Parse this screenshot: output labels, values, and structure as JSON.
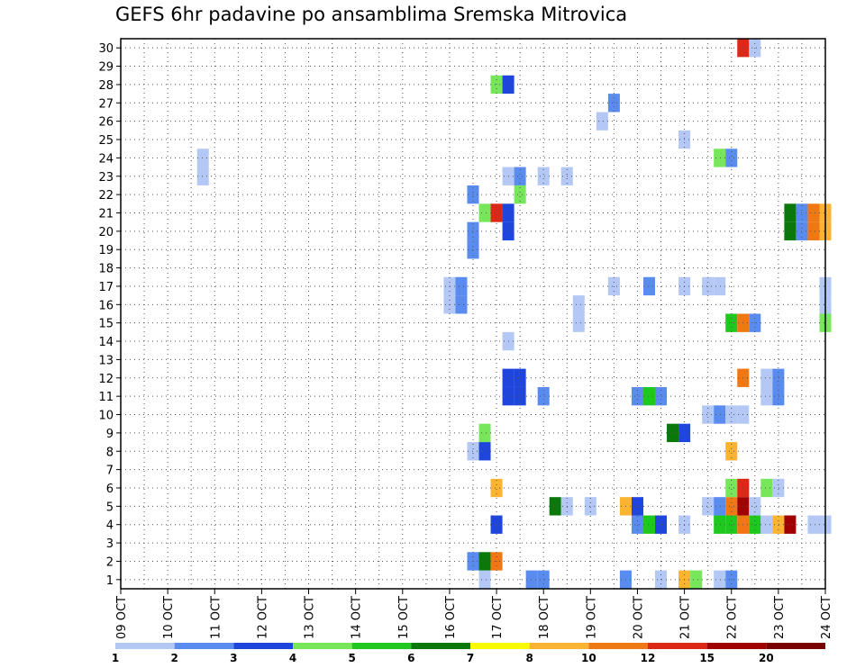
{
  "chart_data": {
    "type": "heatmap",
    "title": "GEFS 6hr padavine po ansamblima Sremska Mitrovica",
    "xlabel": "",
    "ylabel": "",
    "x_tick_labels": [
      "09 OCT",
      "10 OCT",
      "11 OCT",
      "12 OCT",
      "13 OCT",
      "14 OCT",
      "15 OCT",
      "16 OCT",
      "17 OCT",
      "18 OCT",
      "19 OCT",
      "20 OCT",
      "21 OCT",
      "22 OCT",
      "23 OCT",
      "24 OCT"
    ],
    "y_tick_labels": [
      "1",
      "2",
      "3",
      "4",
      "5",
      "6",
      "7",
      "8",
      "9",
      "10",
      "11",
      "12",
      "13",
      "14",
      "15",
      "16",
      "17",
      "18",
      "19",
      "20",
      "21",
      "22",
      "23",
      "24",
      "25",
      "26",
      "27",
      "28",
      "29",
      "30"
    ],
    "ylim": [
      1,
      30
    ],
    "x_start_day": 9,
    "x_end_day": 24,
    "steps_per_day": 4,
    "grid": true,
    "colorbar": {
      "colors": [
        "#b4c8f5",
        "#5a8cf0",
        "#1e46dc",
        "#78e65a",
        "#1ec81e",
        "#0a780a",
        "#fafa00",
        "#fab432",
        "#f07814",
        "#dc2814",
        "#a00000",
        "#780000"
      ],
      "labels": [
        "1",
        "2",
        "3",
        "4",
        "5",
        "6",
        "7",
        "8",
        "10",
        "12",
        "15",
        "20"
      ]
    },
    "points": [
      {
        "x": 16.75,
        "y": 1,
        "v": 1
      },
      {
        "x": 17.75,
        "y": 1,
        "v": 2
      },
      {
        "x": 18.0,
        "y": 1,
        "v": 2
      },
      {
        "x": 19.75,
        "y": 1,
        "v": 2
      },
      {
        "x": 20.5,
        "y": 1,
        "v": 1
      },
      {
        "x": 21.0,
        "y": 1,
        "v": 8
      },
      {
        "x": 21.25,
        "y": 1,
        "v": 4
      },
      {
        "x": 21.75,
        "y": 1,
        "v": 1
      },
      {
        "x": 22.0,
        "y": 1,
        "v": 2
      },
      {
        "x": 16.5,
        "y": 2,
        "v": 2
      },
      {
        "x": 16.75,
        "y": 2,
        "v": 6
      },
      {
        "x": 17.0,
        "y": 2,
        "v": 10
      },
      {
        "x": 17.0,
        "y": 4,
        "v": 3
      },
      {
        "x": 20.0,
        "y": 4,
        "v": 2
      },
      {
        "x": 20.25,
        "y": 4,
        "v": 5
      },
      {
        "x": 20.5,
        "y": 4,
        "v": 3
      },
      {
        "x": 21.0,
        "y": 4,
        "v": 1
      },
      {
        "x": 21.75,
        "y": 4,
        "v": 5
      },
      {
        "x": 22.0,
        "y": 4,
        "v": 5
      },
      {
        "x": 22.25,
        "y": 4,
        "v": 10
      },
      {
        "x": 22.5,
        "y": 4,
        "v": 5
      },
      {
        "x": 22.75,
        "y": 4,
        "v": 1
      },
      {
        "x": 23.0,
        "y": 4,
        "v": 8
      },
      {
        "x": 23.25,
        "y": 4,
        "v": 15
      },
      {
        "x": 23.75,
        "y": 4,
        "v": 1
      },
      {
        "x": 24.0,
        "y": 4,
        "v": 1
      },
      {
        "x": 18.25,
        "y": 5,
        "v": 6
      },
      {
        "x": 18.5,
        "y": 5,
        "v": 1
      },
      {
        "x": 19.0,
        "y": 5,
        "v": 1
      },
      {
        "x": 19.75,
        "y": 5,
        "v": 8
      },
      {
        "x": 20.0,
        "y": 5,
        "v": 3
      },
      {
        "x": 21.5,
        "y": 5,
        "v": 1
      },
      {
        "x": 21.75,
        "y": 5,
        "v": 2
      },
      {
        "x": 22.0,
        "y": 5,
        "v": 10
      },
      {
        "x": 22.25,
        "y": 5,
        "v": 15
      },
      {
        "x": 22.5,
        "y": 5,
        "v": 1
      },
      {
        "x": 17.0,
        "y": 6,
        "v": 8
      },
      {
        "x": 22.0,
        "y": 6,
        "v": 4
      },
      {
        "x": 22.25,
        "y": 6,
        "v": 12
      },
      {
        "x": 22.75,
        "y": 6,
        "v": 4
      },
      {
        "x": 23.0,
        "y": 6,
        "v": 1
      },
      {
        "x": 22.0,
        "y": 8,
        "v": 8
      },
      {
        "x": 16.5,
        "y": 8,
        "v": 1
      },
      {
        "x": 16.75,
        "y": 8,
        "v": 3
      },
      {
        "x": 16.75,
        "y": 9,
        "v": 4
      },
      {
        "x": 20.75,
        "y": 9,
        "v": 6
      },
      {
        "x": 21.0,
        "y": 9,
        "v": 3
      },
      {
        "x": 21.5,
        "y": 10,
        "v": 1
      },
      {
        "x": 21.75,
        "y": 10,
        "v": 2
      },
      {
        "x": 22.0,
        "y": 10,
        "v": 1
      },
      {
        "x": 22.25,
        "y": 10,
        "v": 1
      },
      {
        "x": 17.25,
        "y": 11,
        "v": 3
      },
      {
        "x": 17.5,
        "y": 11,
        "v": 3
      },
      {
        "x": 18.0,
        "y": 11,
        "v": 2
      },
      {
        "x": 20.0,
        "y": 11,
        "v": 2
      },
      {
        "x": 20.25,
        "y": 11,
        "v": 5
      },
      {
        "x": 20.5,
        "y": 11,
        "v": 2
      },
      {
        "x": 22.75,
        "y": 11,
        "v": 1
      },
      {
        "x": 23.0,
        "y": 11,
        "v": 2
      },
      {
        "x": 17.25,
        "y": 12,
        "v": 3
      },
      {
        "x": 17.5,
        "y": 12,
        "v": 3
      },
      {
        "x": 22.25,
        "y": 12,
        "v": 10
      },
      {
        "x": 22.75,
        "y": 12,
        "v": 1
      },
      {
        "x": 23.0,
        "y": 12,
        "v": 2
      },
      {
        "x": 17.25,
        "y": 14,
        "v": 1
      },
      {
        "x": 18.75,
        "y": 15,
        "v": 1
      },
      {
        "x": 22.0,
        "y": 15,
        "v": 5
      },
      {
        "x": 22.25,
        "y": 15,
        "v": 10
      },
      {
        "x": 22.5,
        "y": 15,
        "v": 2
      },
      {
        "x": 24.0,
        "y": 15,
        "v": 4
      },
      {
        "x": 16.0,
        "y": 16,
        "v": 1
      },
      {
        "x": 16.25,
        "y": 16,
        "v": 2
      },
      {
        "x": 18.75,
        "y": 16,
        "v": 1
      },
      {
        "x": 24.0,
        "y": 16,
        "v": 1
      },
      {
        "x": 16.0,
        "y": 17,
        "v": 1
      },
      {
        "x": 16.25,
        "y": 17,
        "v": 2
      },
      {
        "x": 19.5,
        "y": 17,
        "v": 1
      },
      {
        "x": 20.25,
        "y": 17,
        "v": 2
      },
      {
        "x": 21.0,
        "y": 17,
        "v": 1
      },
      {
        "x": 21.5,
        "y": 17,
        "v": 1
      },
      {
        "x": 21.75,
        "y": 17,
        "v": 1
      },
      {
        "x": 24.0,
        "y": 17,
        "v": 1
      },
      {
        "x": 16.5,
        "y": 19,
        "v": 2
      },
      {
        "x": 16.5,
        "y": 20,
        "v": 2
      },
      {
        "x": 16.75,
        "y": 21,
        "v": 4
      },
      {
        "x": 17.0,
        "y": 21,
        "v": 12
      },
      {
        "x": 17.25,
        "y": 21,
        "v": 3
      },
      {
        "x": 23.25,
        "y": 21,
        "v": 6
      },
      {
        "x": 23.5,
        "y": 21,
        "v": 2
      },
      {
        "x": 23.75,
        "y": 21,
        "v": 10
      },
      {
        "x": 24.0,
        "y": 21,
        "v": 8
      },
      {
        "x": 17.25,
        "y": 20,
        "v": 3
      },
      {
        "x": 23.25,
        "y": 20,
        "v": 6
      },
      {
        "x": 23.5,
        "y": 20,
        "v": 2
      },
      {
        "x": 23.75,
        "y": 20,
        "v": 10
      },
      {
        "x": 24.0,
        "y": 20,
        "v": 8
      },
      {
        "x": 16.5,
        "y": 22,
        "v": 2
      },
      {
        "x": 17.5,
        "y": 22,
        "v": 4
      },
      {
        "x": 10.75,
        "y": 23,
        "v": 1
      },
      {
        "x": 17.25,
        "y": 23,
        "v": 1
      },
      {
        "x": 17.5,
        "y": 23,
        "v": 2
      },
      {
        "x": 18.0,
        "y": 23,
        "v": 1
      },
      {
        "x": 18.5,
        "y": 23,
        "v": 1
      },
      {
        "x": 10.75,
        "y": 24,
        "v": 1
      },
      {
        "x": 21.75,
        "y": 24,
        "v": 4
      },
      {
        "x": 22.0,
        "y": 24,
        "v": 2
      },
      {
        "x": 21.0,
        "y": 25,
        "v": 1
      },
      {
        "x": 19.25,
        "y": 26,
        "v": 1
      },
      {
        "x": 19.5,
        "y": 27,
        "v": 2
      },
      {
        "x": 17.0,
        "y": 28,
        "v": 4
      },
      {
        "x": 17.25,
        "y": 28,
        "v": 3
      },
      {
        "x": 22.25,
        "y": 30,
        "v": 12
      },
      {
        "x": 22.5,
        "y": 30,
        "v": 1
      }
    ]
  }
}
